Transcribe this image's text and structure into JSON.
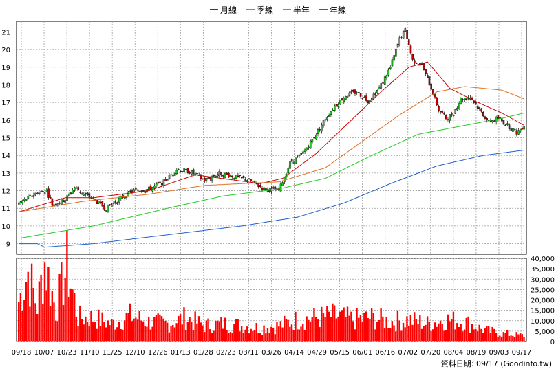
{
  "legend": [
    {
      "label": "月線",
      "color": "#cc0000"
    },
    {
      "label": "季線",
      "color": "#e07020"
    },
    {
      "label": "半年",
      "color": "#22cc22"
    },
    {
      "label": "年線",
      "color": "#1f5fcc"
    }
  ],
  "source": "資料日期: 09/17 (Goodinfo.tw)",
  "chart_data": [
    {
      "type": "candlestick",
      "ylim": [
        8.4,
        21.6
      ],
      "yticks": [
        9,
        10,
        11,
        12,
        13,
        14,
        15,
        16,
        17,
        18,
        19,
        20,
        21
      ],
      "grid": true,
      "legend_placement": "top-center",
      "up_color": "#22cc22",
      "down_color": "#cc0000",
      "xticklabels": [
        "09/18",
        "10/07",
        "10/23",
        "11/10",
        "11/25",
        "12/10",
        "12/26",
        "01/13",
        "01/28",
        "02/23",
        "03/11",
        "03/26",
        "04/14",
        "04/29",
        "05/15",
        "06/01",
        "06/16",
        "07/02",
        "07/20",
        "08/04",
        "08/19",
        "09/03",
        "09/17"
      ],
      "close_anchors": [
        [
          0,
          11.3
        ],
        [
          10,
          11.9
        ],
        [
          15,
          12.0
        ],
        [
          18,
          11.2
        ],
        [
          25,
          11.5
        ],
        [
          30,
          12.2
        ],
        [
          35,
          11.8
        ],
        [
          40,
          11.5
        ],
        [
          47,
          11.0
        ],
        [
          55,
          11.6
        ],
        [
          62,
          12.0
        ],
        [
          70,
          12.1
        ],
        [
          78,
          12.5
        ],
        [
          85,
          13.2
        ],
        [
          92,
          13.1
        ],
        [
          100,
          12.6
        ],
        [
          108,
          13.0
        ],
        [
          116,
          12.8
        ],
        [
          124,
          12.6
        ],
        [
          132,
          12.1
        ],
        [
          140,
          12.0
        ],
        [
          146,
          13.6
        ],
        [
          152,
          14.0
        ],
        [
          158,
          14.9
        ],
        [
          164,
          15.9
        ],
        [
          170,
          16.8
        ],
        [
          176,
          17.4
        ],
        [
          182,
          17.6
        ],
        [
          188,
          17.1
        ],
        [
          194,
          17.8
        ],
        [
          200,
          19.0
        ],
        [
          205,
          20.6
        ],
        [
          208,
          21.1
        ],
        [
          212,
          19.4
        ],
        [
          217,
          19.1
        ],
        [
          222,
          17.8
        ],
        [
          226,
          16.6
        ],
        [
          230,
          16.1
        ],
        [
          234,
          16.4
        ],
        [
          238,
          17.2
        ],
        [
          243,
          17.3
        ],
        [
          248,
          16.6
        ],
        [
          253,
          15.9
        ],
        [
          258,
          16.1
        ],
        [
          263,
          15.7
        ],
        [
          268,
          15.3
        ],
        [
          272,
          15.7
        ]
      ],
      "ma_anchors": {
        "月線": [
          [
            0,
            10.8
          ],
          [
            25,
            11.6
          ],
          [
            40,
            11.6
          ],
          [
            70,
            12.0
          ],
          [
            95,
            12.9
          ],
          [
            130,
            12.4
          ],
          [
            142,
            12.7
          ],
          [
            160,
            14.1
          ],
          [
            180,
            16.1
          ],
          [
            195,
            17.6
          ],
          [
            210,
            19.0
          ],
          [
            220,
            19.3
          ],
          [
            232,
            17.8
          ],
          [
            245,
            17.1
          ],
          [
            260,
            16.4
          ],
          [
            272,
            15.7
          ]
        ],
        "季線": [
          [
            0,
            10.8
          ],
          [
            35,
            11.4
          ],
          [
            70,
            11.8
          ],
          [
            100,
            12.3
          ],
          [
            140,
            12.5
          ],
          [
            165,
            13.3
          ],
          [
            185,
            14.8
          ],
          [
            205,
            16.3
          ],
          [
            225,
            17.6
          ],
          [
            240,
            17.9
          ],
          [
            260,
            17.7
          ],
          [
            272,
            17.2
          ]
        ],
        "半年": [
          [
            0,
            9.3
          ],
          [
            40,
            10.0
          ],
          [
            80,
            11.0
          ],
          [
            110,
            11.7
          ],
          [
            140,
            12.1
          ],
          [
            165,
            12.7
          ],
          [
            190,
            14.0
          ],
          [
            215,
            15.2
          ],
          [
            240,
            15.7
          ],
          [
            260,
            16.1
          ],
          [
            272,
            16.4
          ]
        ],
        "年線": [
          [
            0,
            9.0
          ],
          [
            10,
            9.0
          ],
          [
            14,
            8.8
          ],
          [
            40,
            9.0
          ],
          [
            80,
            9.5
          ],
          [
            120,
            10.0
          ],
          [
            150,
            10.5
          ],
          [
            175,
            11.3
          ],
          [
            200,
            12.4
          ],
          [
            225,
            13.4
          ],
          [
            250,
            14.0
          ],
          [
            272,
            14.3
          ]
        ]
      }
    },
    {
      "type": "bar",
      "ylim": [
        0,
        40000
      ],
      "yticklabels": [
        "0",
        "5,000",
        "10,000",
        "15,000",
        "20,000",
        "25,000",
        "30,000",
        "35,000",
        "40,000"
      ],
      "yticks": [
        0,
        5000,
        10000,
        15000,
        20000,
        25000,
        30000,
        35000,
        40000
      ],
      "bar_color": "#ff0000",
      "volume_anchors": [
        [
          0,
          20000
        ],
        [
          5,
          35000
        ],
        [
          10,
          18000
        ],
        [
          14,
          40000
        ],
        [
          20,
          16000
        ],
        [
          26,
          38000
        ],
        [
          32,
          12000
        ],
        [
          40,
          12000
        ],
        [
          50,
          9000
        ],
        [
          60,
          13000
        ],
        [
          70,
          10000
        ],
        [
          80,
          9000
        ],
        [
          90,
          12000
        ],
        [
          100,
          8000
        ],
        [
          110,
          9000
        ],
        [
          120,
          8000
        ],
        [
          130,
          7000
        ],
        [
          140,
          8000
        ],
        [
          150,
          11000
        ],
        [
          160,
          12000
        ],
        [
          170,
          13000
        ],
        [
          180,
          11000
        ],
        [
          190,
          12000
        ],
        [
          200,
          10000
        ],
        [
          210,
          11000
        ],
        [
          220,
          9000
        ],
        [
          230,
          11000
        ],
        [
          240,
          10000
        ],
        [
          250,
          6000
        ],
        [
          260,
          4000
        ],
        [
          272,
          3000
        ]
      ]
    }
  ]
}
